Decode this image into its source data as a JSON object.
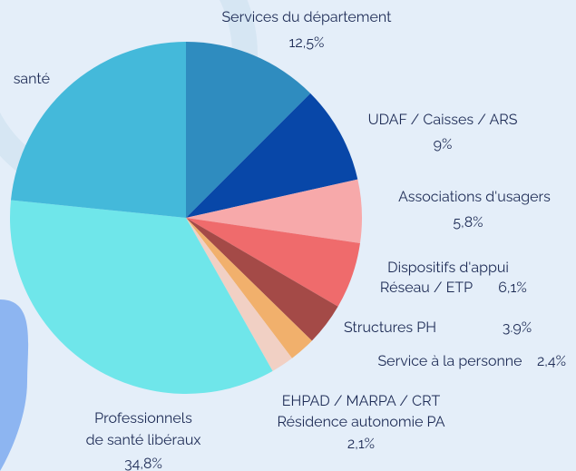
{
  "chart_data": {
    "type": "pie",
    "categories": [
      [
        "Services du département"
      ],
      [
        "UDAF / Caisses / ARS"
      ],
      [
        "Associations d'usagers"
      ],
      [
        "Dispositifs d'appui",
        "Réseau / ETP"
      ],
      [
        "Structures PH"
      ],
      [
        "Service à la personne"
      ],
      [
        "EHPAD / MARPA / CRT",
        "Résidence autonomie PA"
      ],
      [
        "Professionnels",
        "de santé libéraux"
      ],
      [
        "santé"
      ]
    ],
    "values": [
      12.5,
      9,
      5.8,
      6.1,
      3.9,
      2.4,
      2.1,
      34.8,
      23.4
    ],
    "value_labels": [
      "12,5%",
      "9%",
      "5,8%",
      "6,1%",
      "3.9%",
      "2,4%",
      "2,1%",
      "34,8%",
      null
    ],
    "colors": [
      "#2f8cbf",
      "#0847a8",
      "#f7a9aa",
      "#ef6b6c",
      "#a44a47",
      "#f1b06c",
      "#f1d0c4",
      "#6fe6ea",
      "#44b9da"
    ]
  }
}
